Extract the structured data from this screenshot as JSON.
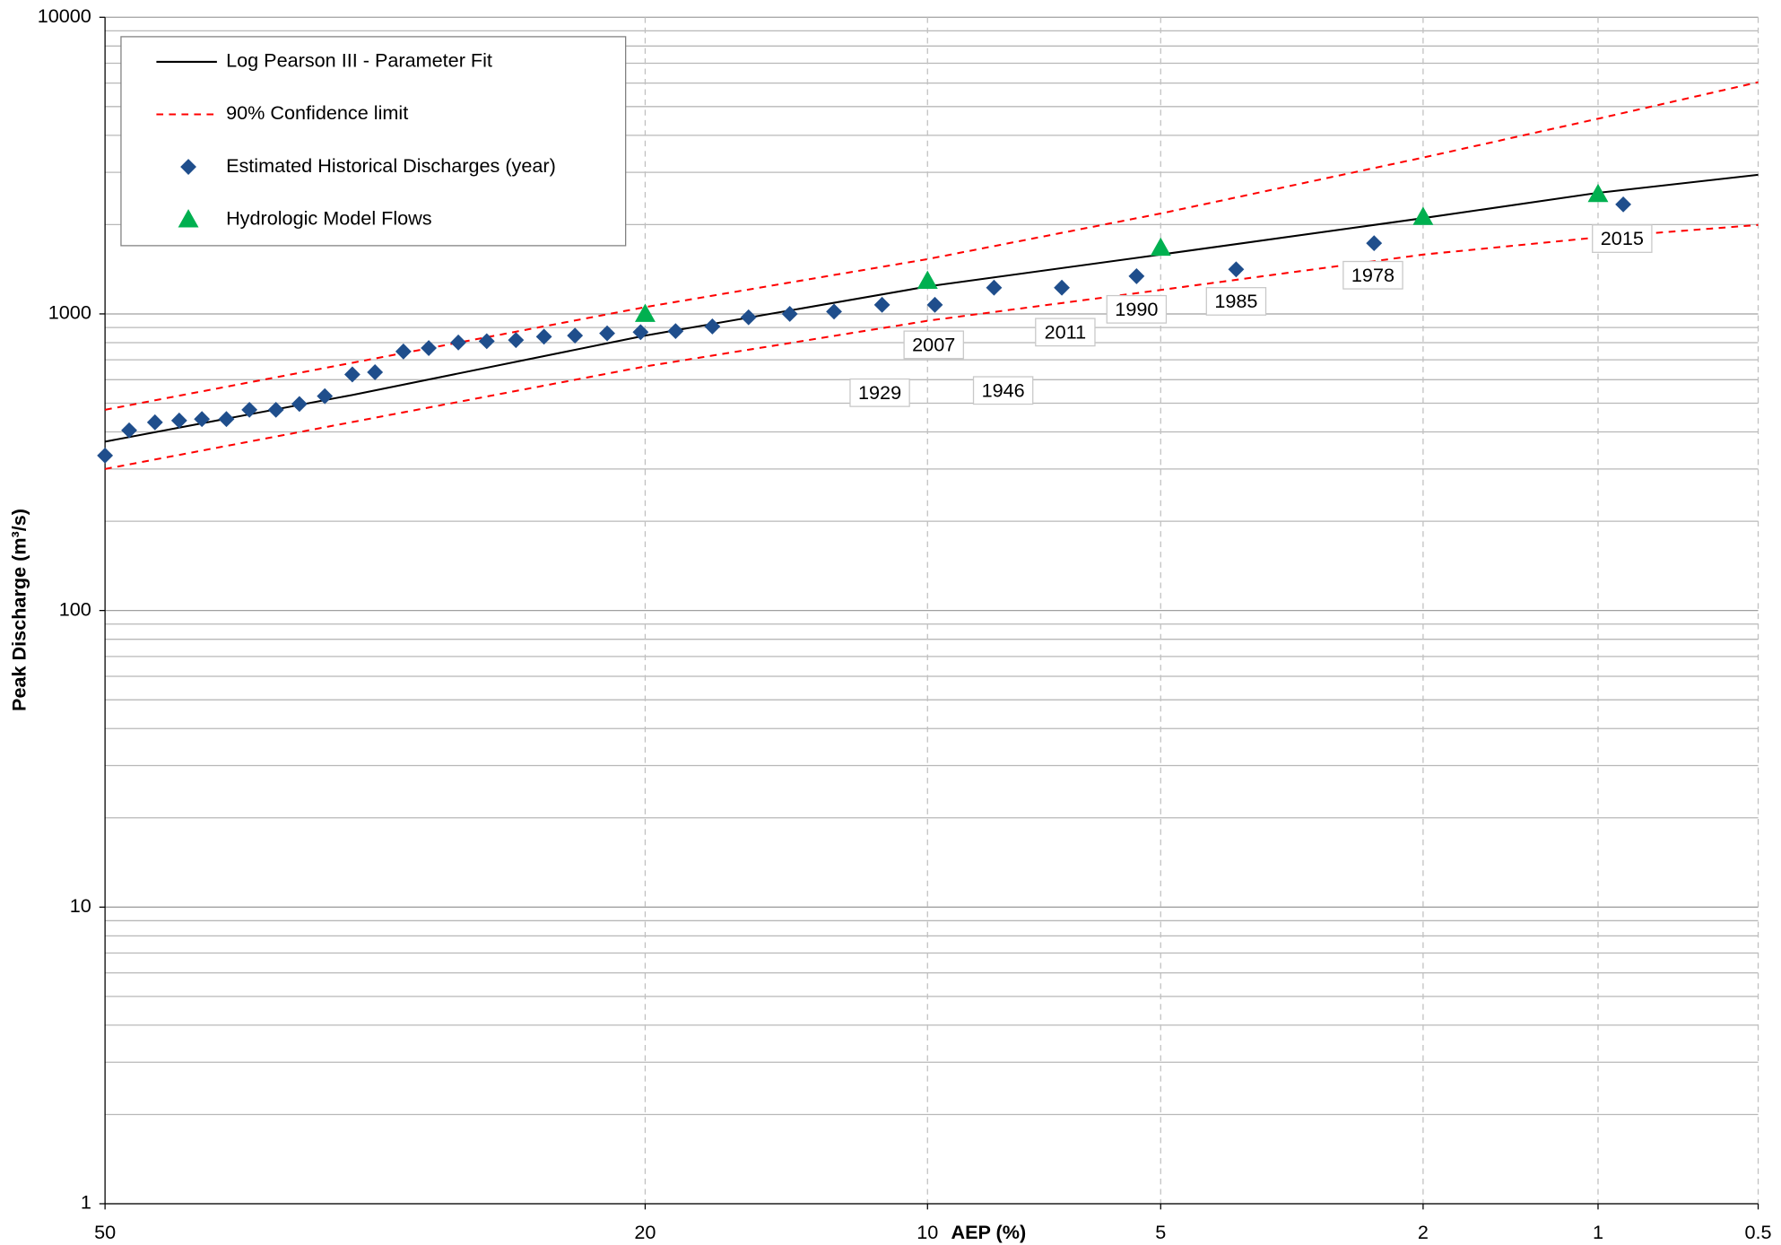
{
  "chart_data": {
    "type": "probability",
    "xlabel": "AEP (%)",
    "ylabel": "Peak Discharge (m³/s)",
    "xlim": [
      50,
      0.5
    ],
    "xticks": [
      50,
      20,
      10,
      5,
      2,
      1,
      0.5
    ],
    "ylim": [
      1,
      10000
    ],
    "yticks": [
      1,
      10,
      100,
      1000,
      10000
    ],
    "ylog": true,
    "grid": true,
    "legend": "upper left",
    "series": [
      {
        "name": "Log Pearson III - Parameter Fit",
        "kind": "line",
        "color": "#000000",
        "style": "solid",
        "x": [
          50,
          35,
          20,
          10,
          5,
          2,
          1,
          0.5
        ],
        "values": [
          371,
          533,
          845,
          1237,
          1585,
          2103,
          2560,
          2944
        ]
      },
      {
        "name": "90% Confidence limit",
        "kind": "band-lines",
        "color": "#ff0000",
        "style": "dashed",
        "x": [
          50,
          20,
          10,
          5,
          2,
          1,
          0.5
        ],
        "values": [
          475,
          1054,
          1530,
          2180,
          3365,
          4550,
          6040
        ],
        "lower": [
          300,
          665,
          948,
          1204,
          1585,
          1811,
          1995
        ]
      },
      {
        "name": "Estimated Historical Discharges (year)",
        "kind": "scatter",
        "marker": "diamond",
        "color": "#1f4e8c",
        "x": [
          50,
          48.5,
          46.9,
          45.4,
          44.0,
          42.5,
          41.1,
          39.5,
          38.1,
          36.6,
          35.0,
          33.7,
          32.1,
          30.7,
          29.1,
          27.6,
          26.1,
          24.7,
          23.2,
          21.7,
          20.2,
          18.7,
          17.2,
          15.8,
          14.3,
          12.8,
          11.3,
          9.8,
          8.3,
          6.8,
          5.4,
          3.9,
          2.4,
          0.9
        ],
        "values": [
          333,
          405,
          431,
          437,
          442,
          442,
          475,
          475,
          497,
          528,
          625,
          636,
          747,
          767,
          801,
          809,
          816,
          838,
          845,
          860,
          868,
          875,
          907,
          974,
          1000,
          1018,
          1073,
          1073,
          1226,
          1226,
          1340,
          1413,
          1731,
          2340
        ],
        "labels": [
          null,
          null,
          null,
          null,
          null,
          null,
          null,
          null,
          null,
          null,
          null,
          null,
          null,
          null,
          null,
          null,
          null,
          null,
          null,
          null,
          null,
          null,
          null,
          null,
          null,
          null,
          "1929",
          "2007",
          "1946",
          "2011",
          "1990",
          "1985",
          "1978",
          "2015"
        ]
      },
      {
        "name": "Hydrologic Model Flows",
        "kind": "scatter",
        "marker": "triangle",
        "color": "#00b050",
        "x": [
          20,
          10,
          5,
          2,
          1
        ],
        "values": [
          1000,
          1293,
          1671,
          2123,
          2535
        ]
      }
    ]
  }
}
